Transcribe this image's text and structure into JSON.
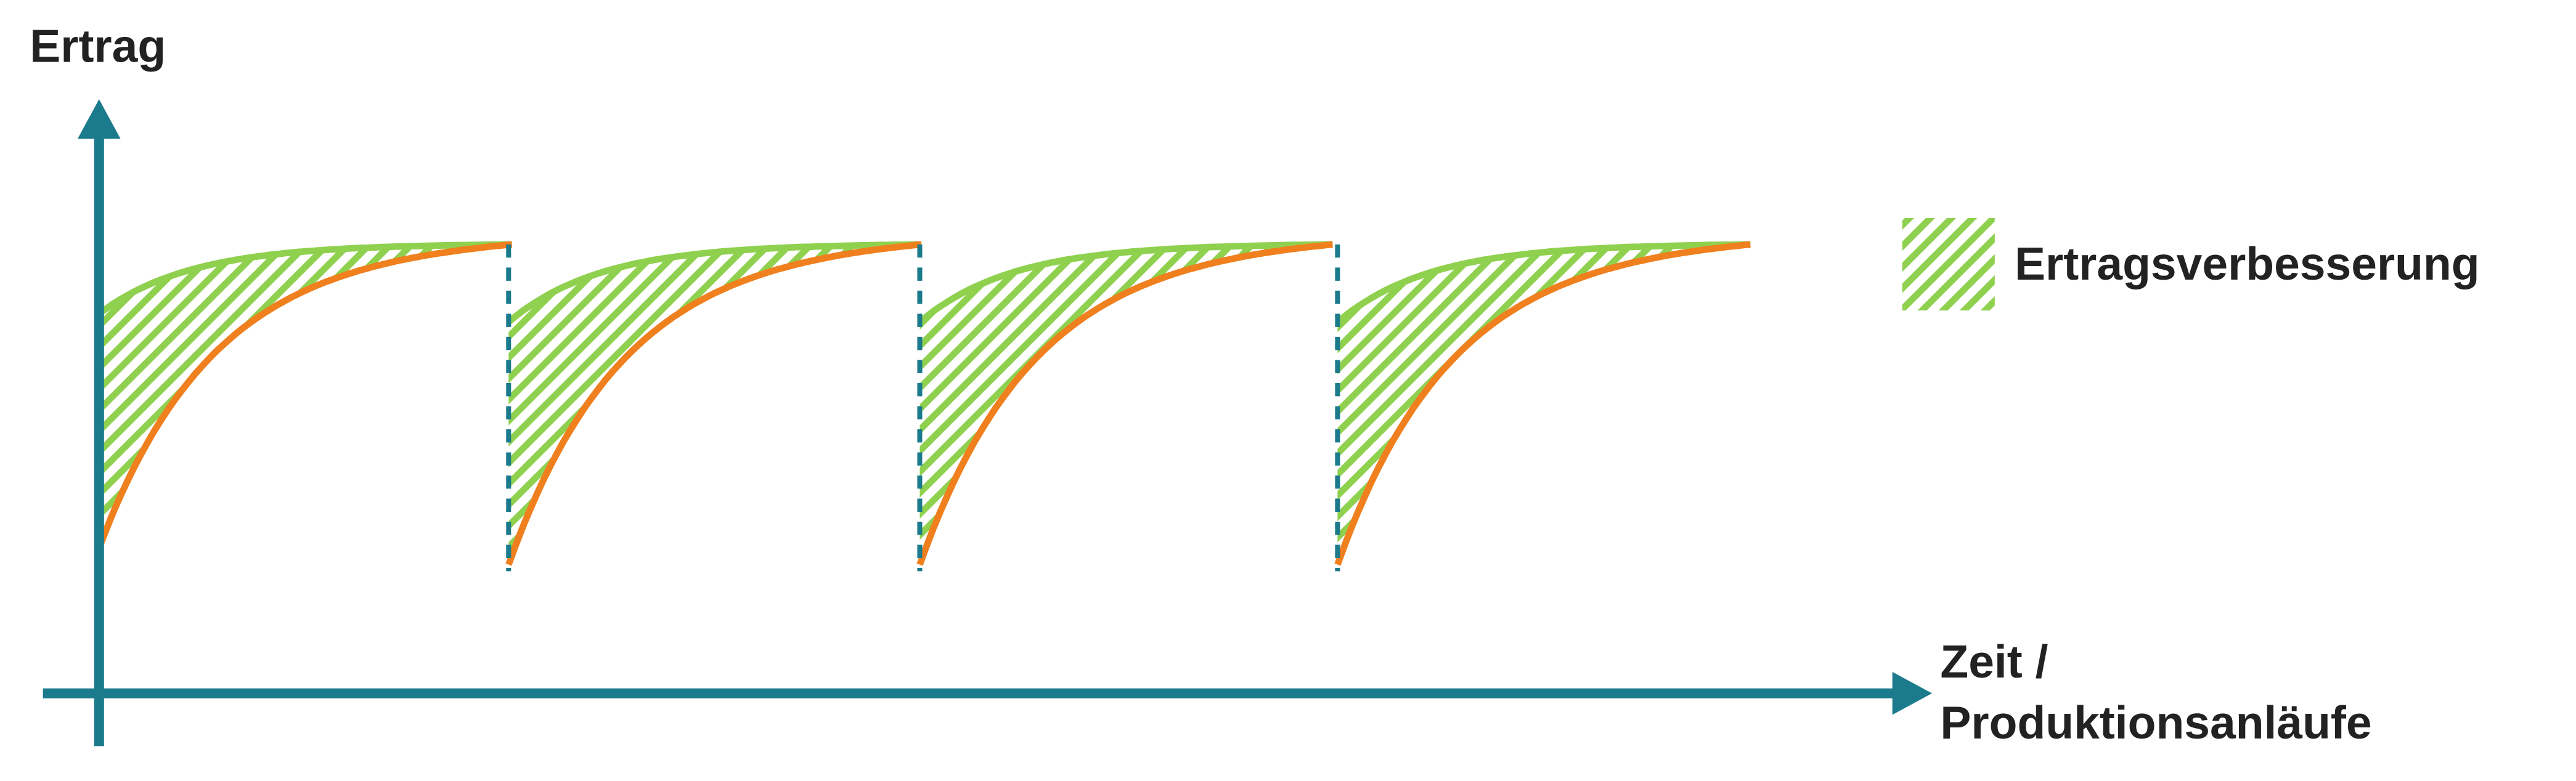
{
  "y_axis": {
    "label": "Ertrag"
  },
  "x_axis": {
    "label_lines": [
      "Zeit /",
      "Produktionsanläufe"
    ]
  },
  "legend": {
    "label": "Ertragsverbesserung"
  }
}
